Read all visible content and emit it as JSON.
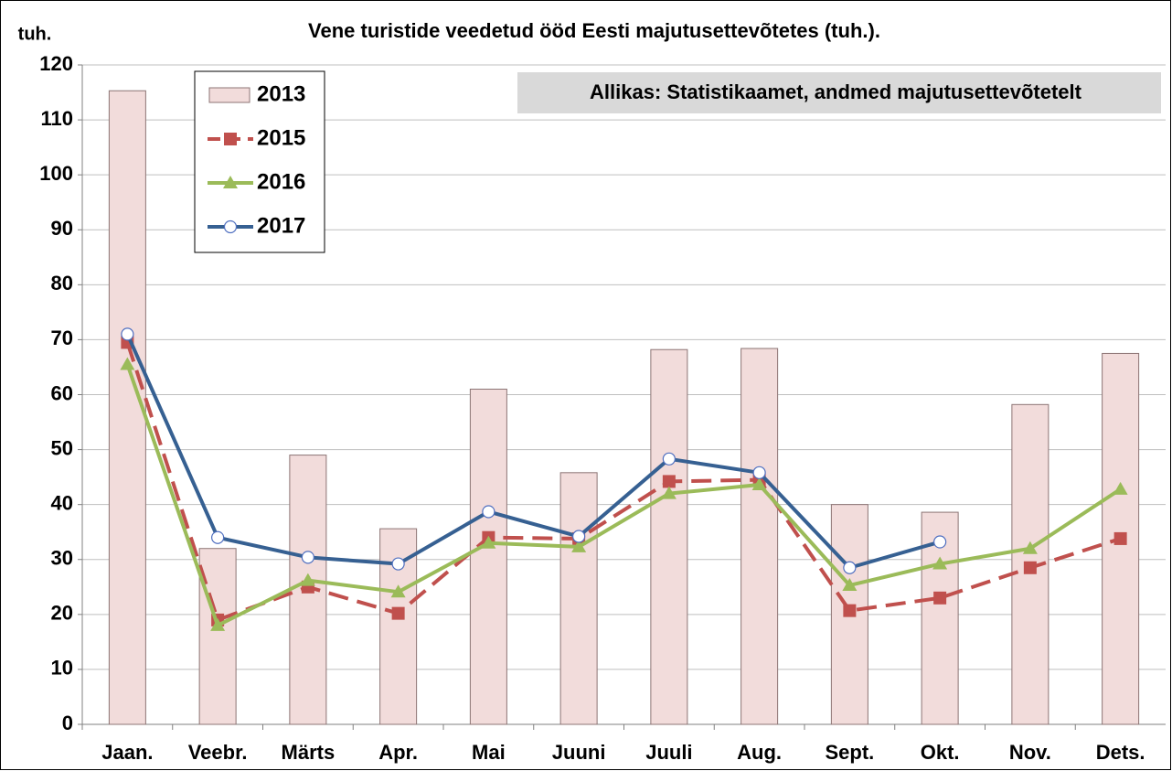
{
  "chart_data": {
    "type": "combo",
    "title": "Vene turistide veedetud ööd Eesti majutusettevõtetes (tuh.).",
    "y_label": "tuh.",
    "annotation": "Allikas: Statistikaamet, andmed majutusettevõtetelt",
    "categories": [
      "Jaan.",
      "Veebr.",
      "Märts",
      "Apr.",
      "Mai",
      "Juuni",
      "Juuli",
      "Aug.",
      "Sept.",
      "Okt.",
      "Nov.",
      "Dets."
    ],
    "series": [
      {
        "name": "2013",
        "type": "bar",
        "color": "#f2dcdb",
        "values": [
          115.3,
          32,
          49,
          35.6,
          61,
          45.8,
          68.2,
          68.4,
          40,
          38.6,
          58.2,
          67.5
        ]
      },
      {
        "name": "2015",
        "type": "line",
        "color": "#c0504d",
        "dashed": true,
        "marker": "square",
        "values": [
          69.5,
          19,
          25,
          20.2,
          34,
          33.8,
          44.2,
          44.5,
          20.7,
          23,
          28.5,
          33.8
        ]
      },
      {
        "name": "2016",
        "type": "line",
        "color": "#9bbb59",
        "dashed": false,
        "marker": "triangle",
        "values": [
          65.5,
          18,
          26.2,
          24.1,
          33,
          32.3,
          42,
          43.6,
          25.3,
          29.2,
          32,
          42.8
        ]
      },
      {
        "name": "2017",
        "type": "line",
        "color": "#366092",
        "dashed": false,
        "marker": "circle",
        "values": [
          71,
          34,
          30.4,
          29.2,
          38.7,
          34.2,
          48.3,
          45.8,
          28.5,
          33.2,
          null,
          null
        ]
      }
    ],
    "ylim": [
      0,
      120
    ],
    "yticks": [
      0,
      10,
      20,
      30,
      40,
      50,
      60,
      70,
      80,
      90,
      100,
      110,
      120
    ],
    "grid": true
  }
}
